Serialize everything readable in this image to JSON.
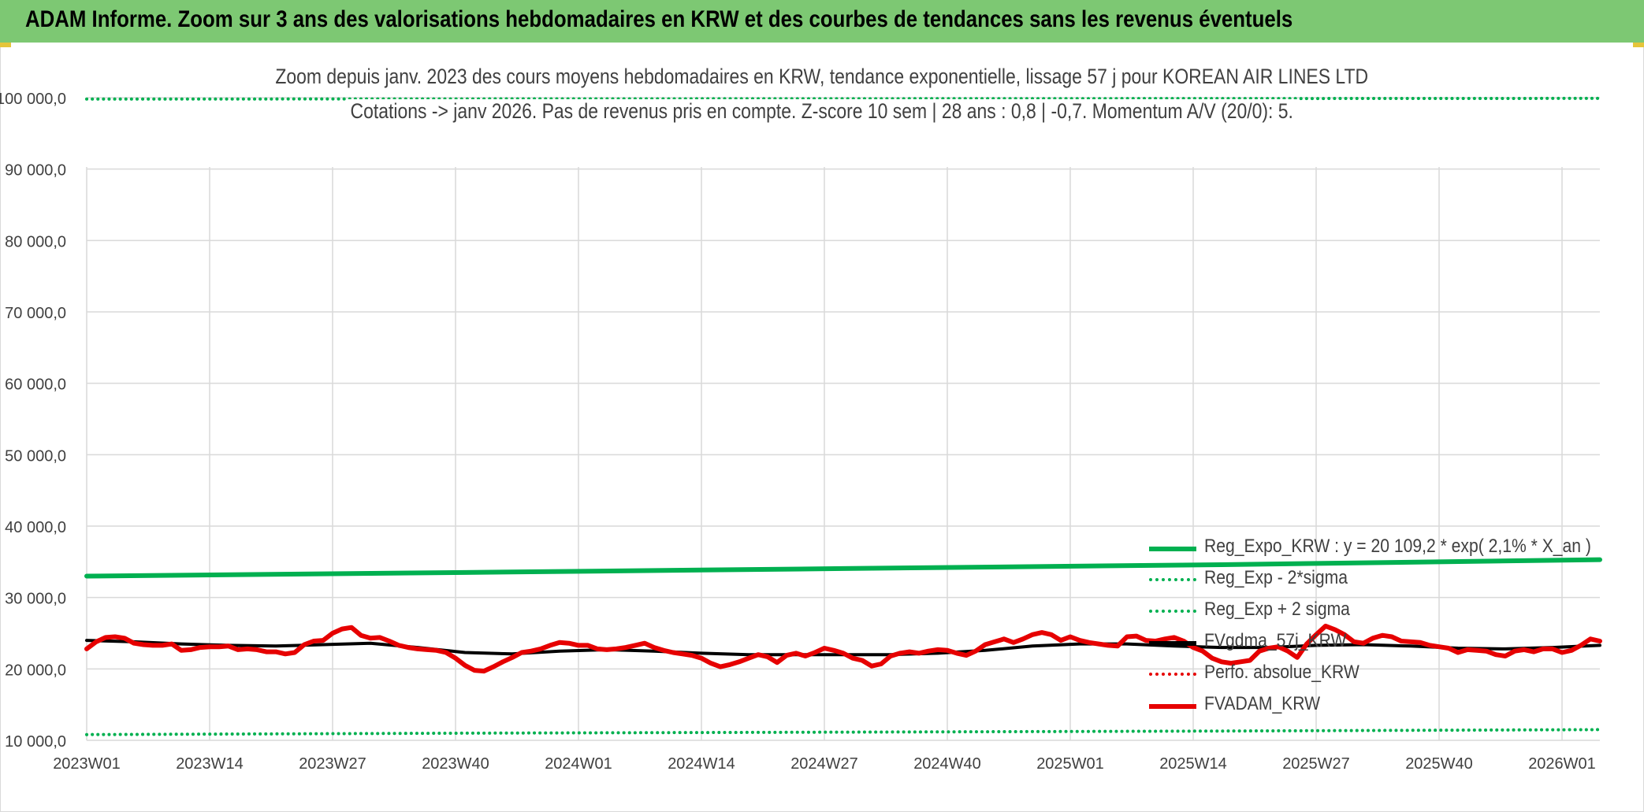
{
  "header": {
    "title": "ADAM Informe. Zoom sur 3 ans des valorisations hebdomadaires en KRW et des courbes de tendances sans les revenus éventuels"
  },
  "colors": {
    "banner": "#7dc873",
    "reg_expo": "#00b050",
    "fvgdma": "#000000",
    "perfo": "#e60000",
    "fvadam": "#e60000",
    "grid": "#d9d9d9",
    "text": "#404040"
  },
  "chart_data": {
    "type": "line",
    "title": "Zoom depuis janv. 2023 des cours moyens hebdomadaires en KRW, tendance exponentielle, lissage 57 j pour KOREAN AIR LINES LTD",
    "subtitle": "Cotations -> janv 2026. Pas de revenus pris en compte. Z-score 10 sem | 28 ans : 0,8 | -0,7. Momentum A/V (20/0): 5.",
    "xlabel": "",
    "ylabel": "",
    "ylim": [
      10000,
      100000
    ],
    "yticks": [
      "10 000,0",
      "20 000,0",
      "30 000,0",
      "40 000,0",
      "50 000,0",
      "60 000,0",
      "70 000,0",
      "80 000,0",
      "90 000,0",
      "100 000,0"
    ],
    "x_tick_labels": [
      "2023W01",
      "2023W14",
      "2023W27",
      "2023W40",
      "2024W01",
      "2024W14",
      "2024W27",
      "2024W40",
      "2025W01",
      "2025W14",
      "2025W27",
      "2025W40",
      "2026W01"
    ],
    "x_tick_positions": [
      0,
      13,
      26,
      39,
      52,
      65,
      78,
      91,
      104,
      117,
      130,
      143,
      156
    ],
    "x_max": 160,
    "grid": true,
    "legend_position": "bottom-right",
    "series": [
      {
        "name": "Reg_Expo_KRW : y = 20 109,2 * exp( 2,1% * X_an )",
        "style": "thick",
        "key": "reg_expo",
        "points": [
          [
            0,
            33000
          ],
          [
            40,
            33500
          ],
          [
            80,
            34050
          ],
          [
            120,
            34600
          ],
          [
            160,
            35300
          ]
        ]
      },
      {
        "name": "Reg_Exp - 2*sigma",
        "style": "dotted",
        "key": "reg_expo",
        "points": [
          [
            0,
            10800
          ],
          [
            40,
            11000
          ],
          [
            80,
            11150
          ],
          [
            120,
            11300
          ],
          [
            160,
            11500
          ]
        ]
      },
      {
        "name": "Reg_Exp + 2 sigma",
        "style": "dotted",
        "key": "reg_expo",
        "points": [
          [
            0,
            99800
          ],
          [
            160,
            99900
          ]
        ]
      },
      {
        "name": "FVgdma_57j_KRW",
        "style": "thick",
        "key": "fvgdma",
        "points": [
          [
            0,
            24000
          ],
          [
            5,
            23800
          ],
          [
            10,
            23500
          ],
          [
            15,
            23300
          ],
          [
            20,
            23200
          ],
          [
            25,
            23400
          ],
          [
            30,
            23600
          ],
          [
            35,
            23000
          ],
          [
            40,
            22300
          ],
          [
            45,
            22100
          ],
          [
            50,
            22500
          ],
          [
            55,
            22700
          ],
          [
            60,
            22500
          ],
          [
            65,
            22200
          ],
          [
            70,
            22000
          ],
          [
            75,
            22000
          ],
          [
            80,
            22000
          ],
          [
            85,
            22000
          ],
          [
            90,
            22200
          ],
          [
            95,
            22600
          ],
          [
            100,
            23200
          ],
          [
            105,
            23500
          ],
          [
            110,
            23500
          ],
          [
            115,
            23200
          ],
          [
            120,
            23000
          ],
          [
            125,
            23000
          ],
          [
            130,
            23300
          ],
          [
            135,
            23400
          ],
          [
            140,
            23200
          ],
          [
            145,
            22900
          ],
          [
            150,
            22800
          ],
          [
            155,
            23000
          ],
          [
            160,
            23300
          ]
        ]
      },
      {
        "name": "Perfo. absolue_KRW",
        "style": "dotted",
        "key": "perfo",
        "points": []
      },
      {
        "name": "FVADAM_KRW",
        "style": "thick",
        "key": "fvadam",
        "points": [
          [
            0,
            22800
          ],
          [
            1,
            23800
          ],
          [
            2,
            24400
          ],
          [
            3,
            24500
          ],
          [
            4,
            24300
          ],
          [
            5,
            23600
          ],
          [
            6,
            23400
          ],
          [
            7,
            23300
          ],
          [
            8,
            23300
          ],
          [
            9,
            23500
          ],
          [
            10,
            22600
          ],
          [
            11,
            22700
          ],
          [
            12,
            23000
          ],
          [
            13,
            23100
          ],
          [
            14,
            23100
          ],
          [
            15,
            23200
          ],
          [
            16,
            22700
          ],
          [
            17,
            22800
          ],
          [
            18,
            22700
          ],
          [
            19,
            22400
          ],
          [
            20,
            22400
          ],
          [
            21,
            22100
          ],
          [
            22,
            22300
          ],
          [
            23,
            23400
          ],
          [
            24,
            23900
          ],
          [
            25,
            24000
          ],
          [
            26,
            25000
          ],
          [
            27,
            25600
          ],
          [
            28,
            25800
          ],
          [
            29,
            24700
          ],
          [
            30,
            24300
          ],
          [
            31,
            24400
          ],
          [
            32,
            23900
          ],
          [
            33,
            23300
          ],
          [
            34,
            23000
          ],
          [
            35,
            22800
          ],
          [
            36,
            22700
          ],
          [
            37,
            22600
          ],
          [
            38,
            22300
          ],
          [
            39,
            21500
          ],
          [
            40,
            20500
          ],
          [
            41,
            19800
          ],
          [
            42,
            19700
          ],
          [
            43,
            20300
          ],
          [
            44,
            21000
          ],
          [
            45,
            21600
          ],
          [
            46,
            22300
          ],
          [
            47,
            22500
          ],
          [
            48,
            22800
          ],
          [
            49,
            23300
          ],
          [
            50,
            23700
          ],
          [
            51,
            23600
          ],
          [
            52,
            23300
          ],
          [
            53,
            23300
          ],
          [
            54,
            22800
          ],
          [
            55,
            22700
          ],
          [
            56,
            22800
          ],
          [
            57,
            23000
          ],
          [
            58,
            23300
          ],
          [
            59,
            23600
          ],
          [
            60,
            23000
          ],
          [
            61,
            22600
          ],
          [
            62,
            22300
          ],
          [
            63,
            22100
          ],
          [
            64,
            21900
          ],
          [
            65,
            21500
          ],
          [
            66,
            20800
          ],
          [
            67,
            20300
          ],
          [
            68,
            20600
          ],
          [
            69,
            21000
          ],
          [
            70,
            21500
          ],
          [
            71,
            22000
          ],
          [
            72,
            21700
          ],
          [
            73,
            20900
          ],
          [
            74,
            21900
          ],
          [
            75,
            22200
          ],
          [
            76,
            21800
          ],
          [
            77,
            22300
          ],
          [
            78,
            22900
          ],
          [
            79,
            22600
          ],
          [
            80,
            22200
          ],
          [
            81,
            21500
          ],
          [
            82,
            21200
          ],
          [
            83,
            20400
          ],
          [
            84,
            20700
          ],
          [
            85,
            21800
          ],
          [
            86,
            22200
          ],
          [
            87,
            22400
          ],
          [
            88,
            22200
          ],
          [
            89,
            22500
          ],
          [
            90,
            22700
          ],
          [
            91,
            22600
          ],
          [
            92,
            22200
          ],
          [
            93,
            21900
          ],
          [
            94,
            22500
          ],
          [
            95,
            23400
          ],
          [
            96,
            23800
          ],
          [
            97,
            24200
          ],
          [
            98,
            23700
          ],
          [
            99,
            24200
          ],
          [
            100,
            24800
          ],
          [
            101,
            25100
          ],
          [
            102,
            24800
          ],
          [
            103,
            24000
          ],
          [
            104,
            24500
          ],
          [
            105,
            24000
          ],
          [
            106,
            23700
          ],
          [
            107,
            23500
          ],
          [
            108,
            23300
          ],
          [
            109,
            23200
          ],
          [
            110,
            24500
          ],
          [
            111,
            24600
          ],
          [
            112,
            24000
          ],
          [
            113,
            23900
          ],
          [
            114,
            24200
          ],
          [
            115,
            24400
          ],
          [
            116,
            23900
          ],
          [
            117,
            23000
          ],
          [
            118,
            22500
          ],
          [
            119,
            21500
          ],
          [
            120,
            21000
          ],
          [
            121,
            20800
          ],
          [
            122,
            21000
          ],
          [
            123,
            21200
          ],
          [
            124,
            22500
          ],
          [
            125,
            22900
          ],
          [
            126,
            23100
          ],
          [
            127,
            22500
          ],
          [
            128,
            21600
          ],
          [
            129,
            23500
          ],
          [
            130,
            24800
          ],
          [
            131,
            26000
          ],
          [
            132,
            25500
          ],
          [
            133,
            24800
          ],
          [
            134,
            23800
          ],
          [
            135,
            23600
          ],
          [
            136,
            24300
          ],
          [
            137,
            24700
          ],
          [
            138,
            24500
          ],
          [
            139,
            23900
          ],
          [
            140,
            23800
          ],
          [
            141,
            23700
          ],
          [
            142,
            23300
          ],
          [
            143,
            23100
          ],
          [
            144,
            22900
          ],
          [
            145,
            22300
          ],
          [
            146,
            22700
          ],
          [
            147,
            22600
          ],
          [
            148,
            22500
          ],
          [
            149,
            22000
          ],
          [
            150,
            21800
          ],
          [
            151,
            22500
          ],
          [
            152,
            22700
          ],
          [
            153,
            22400
          ],
          [
            154,
            22800
          ],
          [
            155,
            22800
          ],
          [
            156,
            22300
          ],
          [
            157,
            22600
          ],
          [
            158,
            23300
          ],
          [
            159,
            24200
          ],
          [
            160,
            23900
          ]
        ]
      }
    ]
  }
}
